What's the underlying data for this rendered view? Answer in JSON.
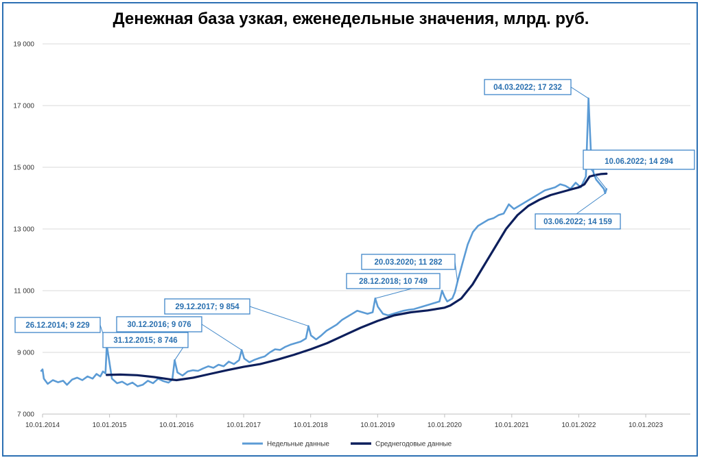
{
  "chart_data": {
    "type": "line",
    "title": "Денежная база узкая, еженедельные значения, млрд. руб.",
    "ylim": [
      7000,
      19000
    ],
    "yticks": [
      7000,
      9000,
      11000,
      13000,
      15000,
      17000,
      19000
    ],
    "ytick_labels": [
      "7 000",
      "9 000",
      "11 000",
      "13 000",
      "15 000",
      "17 000",
      "19 000"
    ],
    "xticks": [
      "2014-01-10",
      "2015-01-10",
      "2016-01-10",
      "2017-01-10",
      "2018-01-10",
      "2019-01-10",
      "2020-01-10",
      "2021-01-10",
      "2022-01-10",
      "2023-01-10"
    ],
    "xtick_labels": [
      "10.01.2014",
      "10.01.2015",
      "10.01.2016",
      "10.01.2017",
      "10.01.2018",
      "10.01.2019",
      "10.01.2020",
      "10.01.2021",
      "10.01.2022",
      "10.01.2023"
    ],
    "xlim": [
      "2014-01-10",
      "2023-09-10"
    ],
    "grid": true,
    "legend": "bottom",
    "series": [
      {
        "name": "Недельные данные",
        "color": "#5b9bd5",
        "points": [
          [
            "2014-01-03",
            8400
          ],
          [
            "2014-01-10",
            8450
          ],
          [
            "2014-01-17",
            8150
          ],
          [
            "2014-02-07",
            7980
          ],
          [
            "2014-03-07",
            8100
          ],
          [
            "2014-04-04",
            8030
          ],
          [
            "2014-05-02",
            8080
          ],
          [
            "2014-05-23",
            7950
          ],
          [
            "2014-06-20",
            8120
          ],
          [
            "2014-07-18",
            8180
          ],
          [
            "2014-08-15",
            8100
          ],
          [
            "2014-09-12",
            8220
          ],
          [
            "2014-10-10",
            8150
          ],
          [
            "2014-10-31",
            8300
          ],
          [
            "2014-11-21",
            8220
          ],
          [
            "2014-12-05",
            8380
          ],
          [
            "2014-12-19",
            8320
          ],
          [
            "2014-12-26",
            9229
          ],
          [
            "2015-01-09",
            8700
          ],
          [
            "2015-01-23",
            8150
          ],
          [
            "2015-02-20",
            8000
          ],
          [
            "2015-03-20",
            8050
          ],
          [
            "2015-04-17",
            7950
          ],
          [
            "2015-05-15",
            8020
          ],
          [
            "2015-06-12",
            7900
          ],
          [
            "2015-07-10",
            7950
          ],
          [
            "2015-08-07",
            8080
          ],
          [
            "2015-09-04",
            8000
          ],
          [
            "2015-10-02",
            8150
          ],
          [
            "2015-10-30",
            8070
          ],
          [
            "2015-11-27",
            8020
          ],
          [
            "2015-12-18",
            8120
          ],
          [
            "2015-12-31",
            8746
          ],
          [
            "2016-01-15",
            8350
          ],
          [
            "2016-02-12",
            8250
          ],
          [
            "2016-03-11",
            8380
          ],
          [
            "2016-04-08",
            8420
          ],
          [
            "2016-05-06",
            8400
          ],
          [
            "2016-06-03",
            8480
          ],
          [
            "2016-07-01",
            8550
          ],
          [
            "2016-07-29",
            8500
          ],
          [
            "2016-08-26",
            8600
          ],
          [
            "2016-09-23",
            8550
          ],
          [
            "2016-10-21",
            8700
          ],
          [
            "2016-11-18",
            8620
          ],
          [
            "2016-12-16",
            8750
          ],
          [
            "2016-12-30",
            9076
          ],
          [
            "2017-01-13",
            8800
          ],
          [
            "2017-02-10",
            8680
          ],
          [
            "2017-03-10",
            8760
          ],
          [
            "2017-04-07",
            8820
          ],
          [
            "2017-05-05",
            8870
          ],
          [
            "2017-06-02",
            9000
          ],
          [
            "2017-06-30",
            9100
          ],
          [
            "2017-07-28",
            9080
          ],
          [
            "2017-08-25",
            9180
          ],
          [
            "2017-09-22",
            9250
          ],
          [
            "2017-10-20",
            9300
          ],
          [
            "2017-11-17",
            9350
          ],
          [
            "2017-12-15",
            9450
          ],
          [
            "2017-12-29",
            9854
          ],
          [
            "2018-01-12",
            9550
          ],
          [
            "2018-02-09",
            9420
          ],
          [
            "2018-03-09",
            9550
          ],
          [
            "2018-04-06",
            9700
          ],
          [
            "2018-05-04",
            9800
          ],
          [
            "2018-06-01",
            9900
          ],
          [
            "2018-06-29",
            10050
          ],
          [
            "2018-07-27",
            10150
          ],
          [
            "2018-08-24",
            10250
          ],
          [
            "2018-09-21",
            10350
          ],
          [
            "2018-10-19",
            10300
          ],
          [
            "2018-11-16",
            10250
          ],
          [
            "2018-12-14",
            10300
          ],
          [
            "2018-12-28",
            10749
          ],
          [
            "2019-01-11",
            10480
          ],
          [
            "2019-02-08",
            10250
          ],
          [
            "2019-03-08",
            10200
          ],
          [
            "2019-04-05",
            10250
          ],
          [
            "2019-05-03",
            10300
          ],
          [
            "2019-05-31",
            10350
          ],
          [
            "2019-06-28",
            10380
          ],
          [
            "2019-07-26",
            10400
          ],
          [
            "2019-08-23",
            10450
          ],
          [
            "2019-09-20",
            10500
          ],
          [
            "2019-10-18",
            10550
          ],
          [
            "2019-11-15",
            10600
          ],
          [
            "2019-12-13",
            10650
          ],
          [
            "2019-12-27",
            11000
          ],
          [
            "2020-01-10",
            10800
          ],
          [
            "2020-01-24",
            10650
          ],
          [
            "2020-02-21",
            10750
          ],
          [
            "2020-03-06",
            10950
          ],
          [
            "2020-03-20",
            11282
          ],
          [
            "2020-04-17",
            11900
          ],
          [
            "2020-05-15",
            12500
          ],
          [
            "2020-06-12",
            12900
          ],
          [
            "2020-07-10",
            13100
          ],
          [
            "2020-08-07",
            13200
          ],
          [
            "2020-09-04",
            13300
          ],
          [
            "2020-10-02",
            13350
          ],
          [
            "2020-10-30",
            13450
          ],
          [
            "2020-11-27",
            13500
          ],
          [
            "2020-12-25",
            13800
          ],
          [
            "2021-01-22",
            13650
          ],
          [
            "2021-02-19",
            13750
          ],
          [
            "2021-03-19",
            13850
          ],
          [
            "2021-04-16",
            13950
          ],
          [
            "2021-05-14",
            14050
          ],
          [
            "2021-06-11",
            14150
          ],
          [
            "2021-07-09",
            14250
          ],
          [
            "2021-08-06",
            14300
          ],
          [
            "2021-09-03",
            14350
          ],
          [
            "2021-10-01",
            14450
          ],
          [
            "2021-10-29",
            14400
          ],
          [
            "2021-11-26",
            14300
          ],
          [
            "2021-12-24",
            14500
          ],
          [
            "2022-01-21",
            14350
          ],
          [
            "2022-02-18",
            14700
          ],
          [
            "2022-03-04",
            17232
          ],
          [
            "2022-03-18",
            15400
          ],
          [
            "2022-04-01",
            14800
          ],
          [
            "2022-04-15",
            14600
          ],
          [
            "2022-04-29",
            14500
          ],
          [
            "2022-05-13",
            14400
          ],
          [
            "2022-05-27",
            14300
          ],
          [
            "2022-06-03",
            14159
          ],
          [
            "2022-06-10",
            14294
          ]
        ]
      },
      {
        "name": "Среднегодовые данные",
        "color": "#0d1f5c",
        "points": [
          [
            "2014-12-26",
            8270
          ],
          [
            "2015-03-10",
            8280
          ],
          [
            "2015-06-10",
            8260
          ],
          [
            "2015-09-10",
            8200
          ],
          [
            "2015-12-10",
            8120
          ],
          [
            "2016-01-10",
            8100
          ],
          [
            "2016-04-10",
            8180
          ],
          [
            "2016-07-10",
            8300
          ],
          [
            "2016-10-10",
            8420
          ],
          [
            "2017-01-10",
            8530
          ],
          [
            "2017-04-10",
            8620
          ],
          [
            "2017-07-10",
            8760
          ],
          [
            "2017-10-10",
            8920
          ],
          [
            "2018-01-10",
            9100
          ],
          [
            "2018-04-10",
            9300
          ],
          [
            "2018-07-10",
            9550
          ],
          [
            "2018-10-10",
            9800
          ],
          [
            "2019-01-10",
            10020
          ],
          [
            "2019-04-10",
            10200
          ],
          [
            "2019-07-10",
            10300
          ],
          [
            "2019-10-10",
            10360
          ],
          [
            "2020-01-10",
            10450
          ],
          [
            "2020-02-10",
            10520
          ],
          [
            "2020-04-10",
            10750
          ],
          [
            "2020-06-10",
            11200
          ],
          [
            "2020-08-10",
            11800
          ],
          [
            "2020-10-10",
            12400
          ],
          [
            "2020-12-10",
            13000
          ],
          [
            "2021-02-10",
            13450
          ],
          [
            "2021-04-10",
            13750
          ],
          [
            "2021-06-10",
            13950
          ],
          [
            "2021-08-10",
            14100
          ],
          [
            "2021-10-10",
            14200
          ],
          [
            "2021-12-10",
            14300
          ],
          [
            "2022-01-10",
            14350
          ],
          [
            "2022-02-10",
            14450
          ],
          [
            "2022-03-10",
            14700
          ],
          [
            "2022-04-10",
            14750
          ],
          [
            "2022-05-10",
            14780
          ],
          [
            "2022-06-10",
            14790
          ]
        ]
      }
    ],
    "annotations": [
      {
        "label": "26.12.2014; 9 229",
        "x": "2014-12-26",
        "y": 9229
      },
      {
        "label": "31.12.2015; 8 746",
        "x": "2015-12-31",
        "y": 8746
      },
      {
        "label": "30.12.2016; 9 076",
        "x": "2016-12-30",
        "y": 9076
      },
      {
        "label": "29.12.2017; 9 854",
        "x": "2017-12-29",
        "y": 9854
      },
      {
        "label": "28.12.2018; 10 749",
        "x": "2018-12-28",
        "y": 10749
      },
      {
        "label": "20.03.2020; 11 282",
        "x": "2020-03-20",
        "y": 11282
      },
      {
        "label": "04.03.2022; 17 232",
        "x": "2022-03-04",
        "y": 17232
      },
      {
        "label": "03.06.2022; 14 159",
        "x": "2022-06-03",
        "y": 14159
      },
      {
        "label": "10.06.2022; 14 294",
        "x": "2022-06-10",
        "y": 14294
      }
    ]
  }
}
